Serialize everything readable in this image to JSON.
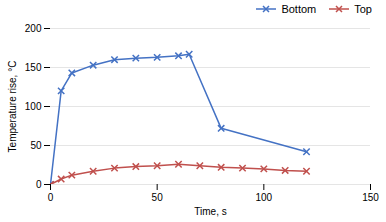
{
  "chart_data": {
    "type": "line",
    "xlabel": "Time, s",
    "ylabel": "Temperature rise, °C",
    "series": [
      {
        "name": "Bottom",
        "color": "#4472C4",
        "marker": "x",
        "x": [
          0,
          5,
          10,
          20,
          30,
          40,
          50,
          60,
          65,
          80,
          120
        ],
        "values": [
          0,
          120,
          143,
          153,
          160,
          162,
          163,
          165,
          167,
          72,
          42
        ]
      },
      {
        "name": "Top",
        "color": "#C0504D",
        "marker": "x",
        "x": [
          0,
          5,
          10,
          20,
          30,
          40,
          50,
          60,
          70,
          80,
          90,
          100,
          110,
          120
        ],
        "values": [
          0,
          7,
          12,
          17,
          21,
          23,
          24,
          26,
          24,
          22,
          21,
          20,
          18,
          17
        ]
      }
    ],
    "xlim": [
      0,
      150
    ],
    "ylim": [
      0,
      200
    ],
    "xticks": [
      0,
      50,
      100,
      150
    ],
    "yticks": [
      0,
      50,
      100,
      150,
      200
    ],
    "grid": true,
    "legend": "upper right"
  }
}
